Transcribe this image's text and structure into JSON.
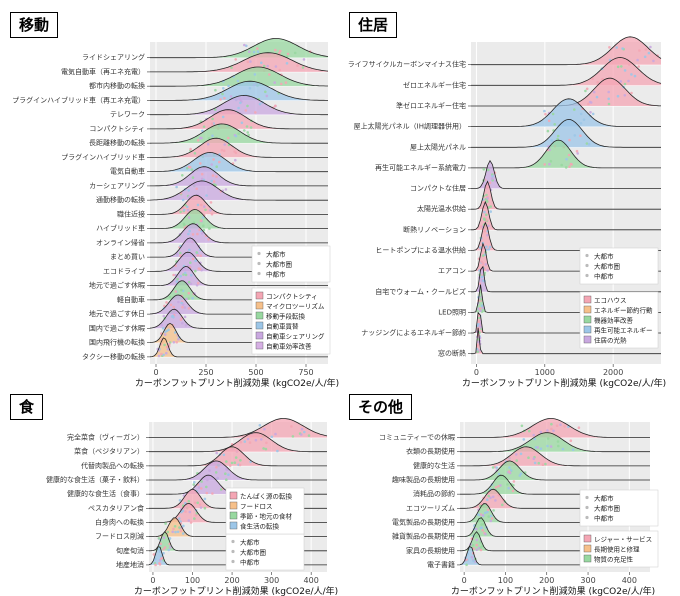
{
  "colors": {
    "panel_bg": "#ebebeb",
    "grid": "#ffffff",
    "pink": "#f4a6b4",
    "green": "#98d8a0",
    "blue": "#9cc6e8",
    "purple": "#c9a8e0",
    "orange": "#f6c08a",
    "legend_marker_a": "#8ed0e0",
    "legend_marker_b": "#d6b0e4"
  },
  "chart_data": [
    {
      "title": "移動",
      "type": "ridgeline",
      "xlabel": "カーボンフットプリント削減効果 (kgCO2e/人/年)",
      "xlim": [
        -30,
        860
      ],
      "xticks": [
        0,
        250,
        500,
        750
      ],
      "categories": [
        "ライドシェアリング",
        "電気自動車（再エネ充電）",
        "都市内移動の転換",
        "プラグインハイブリッド車（再エネ充電）",
        "テレワーク",
        "コンパクトシティ",
        "長距離移動の転換",
        "プラグインハイブリッド車",
        "電気自動車",
        "カーシェアリング",
        "通勤移動の転換",
        "職住近接",
        "ハイブリッド車",
        "オンライン帰省",
        "まとめ買い",
        "エコドライブ",
        "地元で過ごす休暇",
        "軽自動車",
        "地元で過ごす休日",
        "国内で過ごす休暇",
        "国内飛行機の転換",
        "タクシー移動の転換"
      ],
      "peaks": [
        600,
        560,
        510,
        470,
        440,
        360,
        330,
        300,
        270,
        240,
        230,
        200,
        195,
        185,
        170,
        160,
        150,
        130,
        110,
        90,
        70,
        40
      ],
      "spreads": [
        110,
        120,
        110,
        110,
        100,
        90,
        90,
        80,
        80,
        70,
        80,
        50,
        50,
        50,
        40,
        45,
        40,
        40,
        45,
        40,
        30,
        20
      ],
      "fills": [
        "green",
        "pink",
        "green",
        "blue",
        "purple",
        "pink",
        "green",
        "pink",
        "blue",
        "purple",
        "purple",
        "pink",
        "green",
        "purple",
        "purple",
        "purple",
        "purple",
        "green",
        "purple",
        "purple",
        "orange",
        "orange"
      ],
      "legend_city": {
        "items": [
          "大都市",
          "大都市圏",
          "中都市"
        ]
      },
      "legend_category": {
        "items": [
          "コンパクトシティ",
          "マイクロツーリズム",
          "移動手段転換",
          "自動車買替",
          "自動車シェアリング",
          "自動車効率改善"
        ]
      }
    },
    {
      "title": "住居",
      "type": "ridgeline",
      "xlabel": "カーボンフットプリント削減効果 (kgCO2e/人/年)",
      "xlim": [
        -80,
        2700
      ],
      "xticks": [
        0,
        1000,
        2000
      ],
      "categories": [
        "ライフサイクルカーボンマイナス住宅",
        "ゼロエネルギー住宅",
        "準ゼロエネルギー住宅",
        "屋上太陽光パネル（IH調理器併用）",
        "屋上太陽光パネル",
        "再生可能エネルギー系統電力",
        "コンパクトな住居",
        "太陽光温水供給",
        "断熱リノベーション",
        "ヒートポンプによる温水供給",
        "エアコン",
        "自宅でウォーム・クールビズ",
        "LED照明",
        "ナッジングによるエネルギー節約",
        "窓の断熱"
      ],
      "peaks": [
        2250,
        2100,
        1950,
        1350,
        1350,
        1200,
        200,
        160,
        130,
        130,
        100,
        80,
        60,
        40,
        30
      ],
      "spreads": [
        260,
        260,
        230,
        230,
        200,
        180,
        60,
        50,
        50,
        50,
        40,
        30,
        25,
        20,
        15
      ],
      "fills": [
        "pink",
        "pink",
        "pink",
        "blue",
        "blue",
        "green",
        "purple",
        "pink",
        "pink",
        "pink",
        "pink",
        "purple",
        "green",
        "pink",
        "pink"
      ],
      "legend_city": {
        "items": [
          "大都市",
          "大都市圏",
          "中都市"
        ]
      },
      "legend_category": {
        "items": [
          "エコハウス",
          "エネルギー節約行動",
          "機器効率改善",
          "再生可能エネルギー",
          "住居の光熱"
        ]
      }
    },
    {
      "title": "食",
      "type": "ridgeline",
      "xlabel": "カーボンフットプリント削減効果 (kgCO2e/人/年)",
      "xlim": [
        -10,
        440
      ],
      "xticks": [
        0,
        100,
        200,
        300,
        400
      ],
      "categories": [
        "完全菜食（ヴィーガン）",
        "菜食（ベジタリアン）",
        "代替肉製品への転換",
        "健康的な食生活（菓子・飲料）",
        "健康的な食生活（食事）",
        "ペスカタリアン食",
        "白身肉への転換",
        "フードロス削減",
        "旬産旬消",
        "地産地消"
      ],
      "peaks": [
        330,
        260,
        200,
        160,
        140,
        100,
        90,
        55,
        30,
        15
      ],
      "spreads": [
        50,
        40,
        30,
        30,
        25,
        20,
        20,
        15,
        10,
        8
      ],
      "fills": [
        "pink",
        "pink",
        "pink",
        "purple",
        "purple",
        "pink",
        "pink",
        "orange",
        "green",
        "blue"
      ],
      "legend_category": {
        "items": [
          "たんぱく源の転換",
          "フードロス",
          "季節・地元の食材",
          "食生活の転換"
        ]
      },
      "legend_city": {
        "items": [
          "大都市",
          "大都市圏",
          "中都市"
        ]
      }
    },
    {
      "title": "その他",
      "type": "ridgeline",
      "xlabel": "カーボンフットプリント削減効果 (kgCO2e/人/年)",
      "xlim": [
        -10,
        450
      ],
      "xticks": [
        0,
        100,
        200,
        300,
        400
      ],
      "categories": [
        "コミュニティーでの休暇",
        "衣類の長期使用",
        "健康的な生活",
        "趣味製品の長期使用",
        "消耗品の節約",
        "エコツーリズム",
        "電気製品の長期使用",
        "雑貨製品の長期使用",
        "家具の長期使用",
        "電子書籍"
      ],
      "peaks": [
        210,
        200,
        150,
        110,
        90,
        70,
        50,
        40,
        30,
        15
      ],
      "spreads": [
        45,
        40,
        35,
        25,
        20,
        20,
        15,
        12,
        10,
        8
      ],
      "fills": [
        "pink",
        "green",
        "pink",
        "green",
        "green",
        "pink",
        "green",
        "green",
        "green",
        "blue"
      ],
      "legend_city": {
        "items": [
          "大都市",
          "大都市圏",
          "中都市"
        ]
      },
      "legend_category": {
        "items": [
          "レジャー・サービス",
          "長期使用と修理",
          "物質の充足性"
        ]
      }
    }
  ]
}
